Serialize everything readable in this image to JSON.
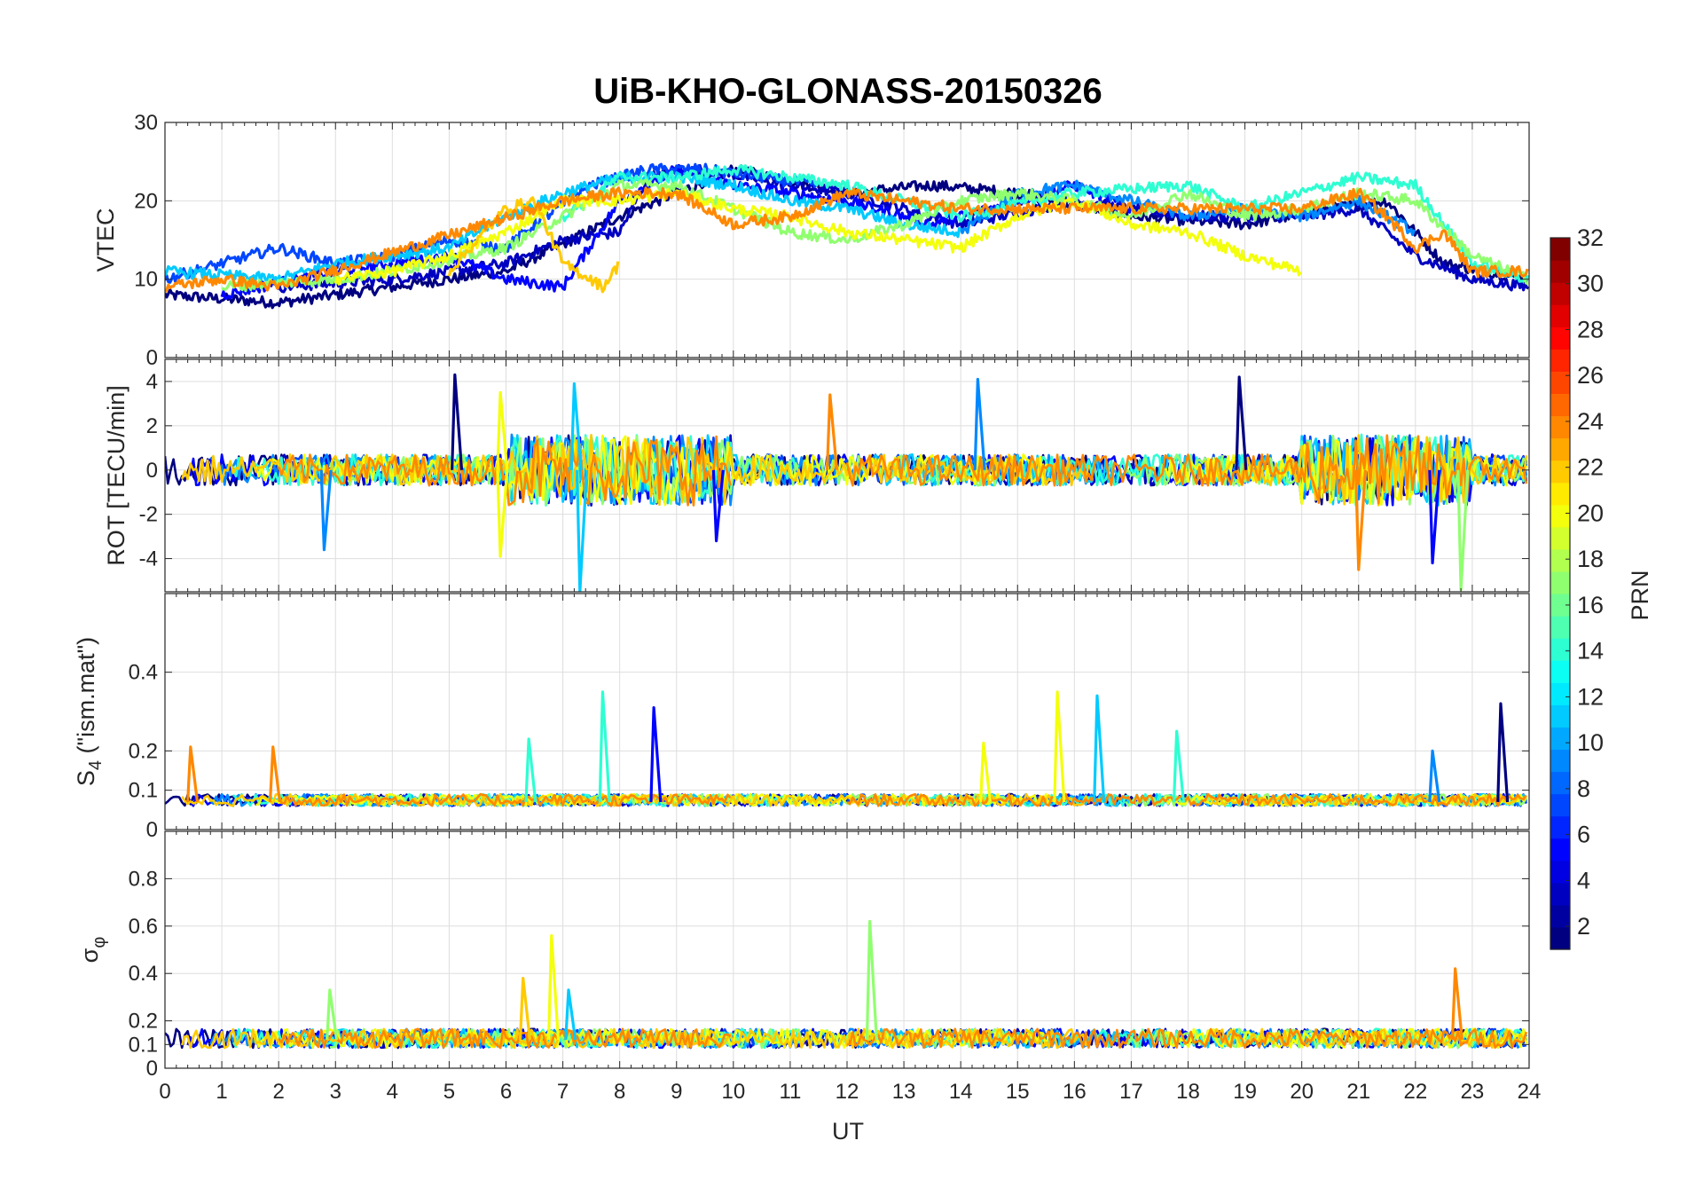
{
  "chart_data": {
    "type": "line",
    "title": "UiB-KHO-GLONASS-20150326",
    "xlabel": "UT",
    "xlim": [
      0,
      24
    ],
    "xticks": [
      "0",
      "1",
      "2",
      "3",
      "4",
      "5",
      "6",
      "7",
      "8",
      "9",
      "10",
      "11",
      "12",
      "13",
      "14",
      "15",
      "16",
      "17",
      "18",
      "19",
      "20",
      "21",
      "22",
      "23",
      "24"
    ],
    "colorbar": {
      "label": "PRN",
      "range": [
        1,
        32
      ],
      "ticks": [
        "2",
        "4",
        "6",
        "8",
        "10",
        "12",
        "14",
        "16",
        "18",
        "20",
        "22",
        "24",
        "26",
        "28",
        "30",
        "32"
      ],
      "colormap": "jet"
    },
    "series_prns": [
      1,
      3,
      5,
      7,
      9,
      11,
      14,
      17,
      20,
      22,
      24
    ],
    "panels": [
      {
        "id": "vtec",
        "ylabel": "VTEC",
        "ylim": [
          0,
          30
        ],
        "yticks": [
          "0",
          "10",
          "20",
          "30"
        ],
        "tracks": [
          {
            "prn": 1,
            "x": [
              0,
              2,
              4,
              6,
              8,
              10,
              12,
              13.5,
              15,
              17,
              19,
              20.5,
              21.5,
              22.5,
              24
            ],
            "y": [
              8,
              7,
              9,
              11,
              18,
              24,
              21,
              22,
              21,
              18,
              17,
              19,
              20,
              12,
              10
            ]
          },
          {
            "prn": 3,
            "x": [
              2,
              4,
              6,
              7,
              8,
              8.5,
              9.5,
              11,
              12,
              14,
              16,
              18,
              20,
              21,
              22,
              23,
              24
            ],
            "y": [
              9,
              10,
              12,
              15,
              16,
              23,
              24,
              22,
              21,
              17,
              20,
              18,
              18,
              19,
              13,
              10,
              9
            ]
          },
          {
            "prn": 5,
            "x": [
              1,
              3,
              5,
              6,
              7,
              8,
              9,
              10,
              12,
              13.5,
              15,
              16,
              17
            ],
            "y": [
              8,
              11,
              13,
              10,
              9,
              20,
              24,
              22,
              20,
              17,
              20,
              22,
              19
            ]
          },
          {
            "prn": 7,
            "x": [
              0,
              1,
              2,
              3,
              4,
              5,
              6,
              6.5,
              7.5,
              8.5,
              9.5,
              10.5,
              11.5
            ],
            "y": [
              10,
              12,
              14,
              12,
              13,
              15,
              14,
              17,
              22,
              24,
              24,
              23,
              22
            ]
          },
          {
            "prn": 9,
            "x": [
              14,
              15,
              16,
              17,
              18,
              19,
              20,
              21,
              22
            ],
            "y": [
              16,
              21,
              22,
              20,
              18,
              19,
              18,
              20,
              16
            ]
          },
          {
            "prn": 11,
            "x": [
              0,
              2,
              3,
              5,
              6,
              7,
              8,
              9,
              10,
              11,
              12,
              13,
              14
            ],
            "y": [
              11,
              10,
              12,
              14,
              18,
              21,
              23,
              23,
              22,
              20,
              19,
              17,
              16
            ]
          },
          {
            "prn": 14,
            "x": [
              7,
              8,
              9,
              10,
              11,
              12,
              14,
              16,
              18,
              19,
              20,
              21,
              22,
              23,
              24
            ],
            "y": [
              18,
              23,
              23,
              24,
              23,
              22,
              18,
              21,
              22,
              19,
              21,
              23,
              22,
              12,
              10
            ]
          },
          {
            "prn": 17,
            "x": [
              1,
              3,
              4,
              6,
              7,
              8,
              9,
              10,
              11,
              12,
              13,
              14,
              15,
              16,
              17,
              18,
              19,
              20,
              21,
              22,
              23,
              24
            ],
            "y": [
              9,
              10,
              11,
              14,
              18,
              22,
              22,
              19,
              16,
              15,
              17,
              20,
              21,
              20,
              18,
              21,
              18,
              19,
              21,
              20,
              13,
              10
            ]
          },
          {
            "prn": 20,
            "x": [
              3,
              4,
              5,
              6,
              7,
              8,
              9,
              10,
              11,
              12,
              14,
              15,
              16,
              17,
              18,
              19,
              20
            ],
            "y": [
              10,
              11,
              13,
              16,
              20,
              20,
              21,
              19,
              18,
              16,
              14,
              18,
              20,
              17,
              16,
              13,
              11
            ]
          },
          {
            "prn": 22,
            "x": [
              5,
              5.5,
              6,
              6.5,
              7,
              7.5,
              7.7,
              8
            ],
            "y": [
              11,
              15,
              19,
              20,
              12,
              10,
              9,
              12
            ]
          },
          {
            "prn": 24,
            "x": [
              0,
              1,
              2,
              7,
              8,
              9,
              10,
              11,
              12,
              13,
              14,
              20,
              21,
              21.5,
              22,
              22.5,
              23,
              24
            ],
            "y": [
              9,
              10,
              9,
              20,
              21,
              21,
              17,
              18,
              21,
              20,
              19,
              19,
              21,
              18,
              14,
              16,
              11,
              11
            ]
          }
        ]
      },
      {
        "id": "rot",
        "ylabel": "ROT [TECU/min]",
        "ylim": [
          -5.5,
          5
        ],
        "yticks": [
          "-4",
          "-2",
          "0",
          "2",
          "4"
        ],
        "spikes": [
          {
            "prn": 1,
            "x": 5.1,
            "y": 4.3
          },
          {
            "prn": 1,
            "x": 18.9,
            "y": 4.2
          },
          {
            "prn": 5,
            "x": 9.7,
            "y": -3.2
          },
          {
            "prn": 5,
            "x": 22.3,
            "y": -4.2
          },
          {
            "prn": 9,
            "x": 14.3,
            "y": 4.1
          },
          {
            "prn": 9,
            "x": 2.8,
            "y": -3.6
          },
          {
            "prn": 11,
            "x": 7.2,
            "y": 3.9
          },
          {
            "prn": 11,
            "x": 7.3,
            "y": -5.5
          },
          {
            "prn": 17,
            "x": 22.8,
            "y": -5.4
          },
          {
            "prn": 20,
            "x": 5.9,
            "y": 3.5
          },
          {
            "prn": 20,
            "x": 5.9,
            "y": -3.9
          },
          {
            "prn": 24,
            "x": 11.7,
            "y": 3.4
          },
          {
            "prn": 24,
            "x": 21.0,
            "y": -4.5
          }
        ]
      },
      {
        "id": "s4",
        "ylabel": "S4 (\"ism.mat\")",
        "ylabel_main": "S",
        "ylabel_sub": "4",
        "ylabel_rest": " (\"ism.mat\")",
        "ylim": [
          0,
          0.6
        ],
        "yticks": [
          "0",
          "0.1",
          "0.2",
          "0.4"
        ],
        "spikes": [
          {
            "prn": 24,
            "x": 0.45,
            "y": 0.21
          },
          {
            "prn": 24,
            "x": 1.9,
            "y": 0.21
          },
          {
            "prn": 14,
            "x": 6.4,
            "y": 0.23
          },
          {
            "prn": 14,
            "x": 7.7,
            "y": 0.35
          },
          {
            "prn": 5,
            "x": 8.6,
            "y": 0.31
          },
          {
            "prn": 20,
            "x": 15.7,
            "y": 0.35
          },
          {
            "prn": 11,
            "x": 16.4,
            "y": 0.34
          },
          {
            "prn": 14,
            "x": 17.8,
            "y": 0.25
          },
          {
            "prn": 20,
            "x": 14.4,
            "y": 0.22
          },
          {
            "prn": 1,
            "x": 23.5,
            "y": 0.32
          },
          {
            "prn": 9,
            "x": 22.3,
            "y": 0.2
          }
        ]
      },
      {
        "id": "sigma",
        "ylabel": "σφ",
        "ylabel_main": "σ",
        "ylabel_sub": "φ",
        "ylim": [
          0,
          1
        ],
        "yticks": [
          "0",
          "0.1",
          "0.2",
          "0.4",
          "0.6",
          "0.8"
        ],
        "spikes": [
          {
            "prn": 20,
            "x": 6.8,
            "y": 0.56
          },
          {
            "prn": 17,
            "x": 12.4,
            "y": 0.62
          },
          {
            "prn": 24,
            "x": 22.7,
            "y": 0.42
          },
          {
            "prn": 22,
            "x": 6.3,
            "y": 0.38
          },
          {
            "prn": 17,
            "x": 2.9,
            "y": 0.33
          },
          {
            "prn": 11,
            "x": 7.1,
            "y": 0.33
          }
        ]
      }
    ]
  }
}
